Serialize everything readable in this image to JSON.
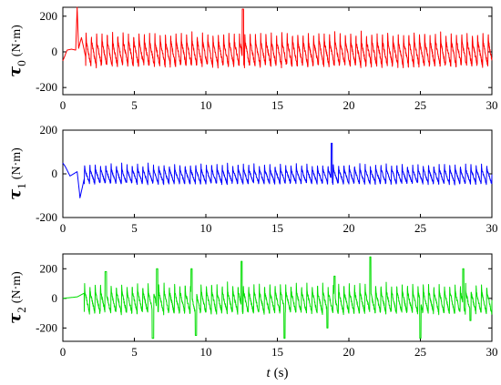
{
  "chart_data": [
    {
      "type": "line",
      "id": "tau0",
      "ylabel": {
        "symbol": "τ",
        "subscript": "0",
        "unit": "(N·m)"
      },
      "xlim": [
        0,
        30
      ],
      "ylim": [
        -240,
        250
      ],
      "xticks": [
        0,
        5,
        10,
        15,
        20,
        25,
        30
      ],
      "yticks": [
        -200,
        0,
        200
      ],
      "color": "#ff0000",
      "series": [
        {
          "x": [
            0,
            0.3,
            0.6,
            0.9,
            1.0,
            1.1,
            1.3,
            1.6,
            2.0,
            2.5,
            3.0,
            4.0,
            5.0,
            6.0,
            7.0,
            8.0,
            9.0,
            10.0,
            11.0,
            12.0,
            12.6,
            13.0,
            14.0,
            15.0,
            16.0,
            17.0,
            18.0,
            19.0,
            20.0,
            21.0,
            22.0,
            23.0,
            24.0,
            25.0,
            25.8,
            26.0,
            27.0,
            28.0,
            29.0,
            30.0
          ],
          "y": [
            -50,
            10,
            15,
            10,
            250,
            20,
            80,
            -30,
            120,
            130,
            140,
            110,
            110,
            120,
            110,
            110,
            110,
            110,
            110,
            110,
            240,
            110,
            110,
            110,
            110,
            110,
            110,
            110,
            110,
            110,
            110,
            110,
            110,
            110,
            130,
            110,
            110,
            110,
            110,
            110
          ],
          "oscillation": {
            "start": 1.6,
            "period": 0.37,
            "low": -80,
            "high": 110
          }
        }
      ]
    },
    {
      "type": "line",
      "id": "tau1",
      "ylabel": {
        "symbol": "τ",
        "subscript": "1",
        "unit": "(N·m)"
      },
      "xlim": [
        0,
        30
      ],
      "ylim": [
        -200,
        200
      ],
      "xticks": [
        0,
        5,
        10,
        15,
        20,
        25,
        30
      ],
      "yticks": [
        -200,
        0,
        200
      ],
      "color": "#0000ff",
      "series": [
        {
          "x": [
            0,
            0.2,
            0.5,
            1.0,
            1.2,
            1.5,
            2.0,
            3.0,
            5.0,
            8.0,
            10.0,
            15.0,
            18.8,
            20.0,
            25.0,
            30.0
          ],
          "y": [
            50,
            30,
            -10,
            10,
            -110,
            -20,
            20,
            30,
            40,
            40,
            40,
            40,
            140,
            40,
            40,
            40
          ],
          "oscillation": {
            "start": 1.5,
            "period": 0.37,
            "low": -45,
            "high": 45
          }
        }
      ]
    },
    {
      "type": "line",
      "id": "tau2",
      "ylabel": {
        "symbol": "τ",
        "subscript": "2",
        "unit": "(N·m)"
      },
      "xlim": [
        0,
        30
      ],
      "ylim": [
        -290,
        300
      ],
      "xticks": [
        0,
        5,
        10,
        15,
        20,
        25,
        30
      ],
      "yticks": [
        -200,
        0,
        200
      ],
      "xlabel": {
        "symbol": "t",
        "unit": "(s)"
      },
      "color": "#00dd00",
      "series": [
        {
          "x": [
            0,
            1.0,
            2.0,
            3.0,
            3.3,
            5.0,
            6.3,
            6.6,
            9.0,
            9.3,
            10.0,
            12.5,
            13.0,
            15.5,
            16.0,
            18.5,
            19.0,
            21.5,
            22.0,
            25.0,
            25.5,
            28.0,
            28.5,
            30.0
          ],
          "y": [
            0,
            10,
            60,
            180,
            -100,
            -120,
            -270,
            200,
            200,
            -250,
            -50,
            250,
            100,
            -270,
            50,
            -200,
            150,
            280,
            100,
            -270,
            50,
            200,
            -150,
            -50
          ],
          "oscillation": {
            "start": 1.5,
            "period": 0.37,
            "low": -100,
            "high": 100
          }
        }
      ]
    }
  ]
}
